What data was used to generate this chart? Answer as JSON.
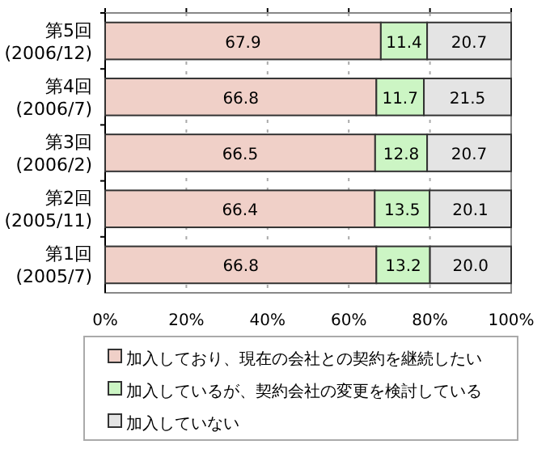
{
  "chart_data": {
    "type": "bar",
    "orientation": "horizontal",
    "stacked": true,
    "categories": [
      "第5回\n(2006/12)",
      "第4回\n(2006/7)",
      "第3回\n(2006/2)",
      "第2回\n(2005/11)",
      "第1回\n(2005/7)"
    ],
    "series": [
      {
        "name": "加入しており、現在の会社との契約を継続したい",
        "color": "#f0d0c8",
        "values": [
          67.9,
          66.8,
          66.5,
          66.4,
          66.8
        ]
      },
      {
        "name": "加入しているが、契約会社の変更を検討している",
        "color": "#ccf5c4",
        "values": [
          11.4,
          11.7,
          12.8,
          13.5,
          13.2
        ]
      },
      {
        "name": "加入していない",
        "color": "#e4e4e4",
        "values": [
          20.7,
          21.5,
          20.7,
          20.1,
          20.0
        ],
        "value_labels": [
          "20.7",
          "21.5",
          "20.7",
          "20.1",
          "20.0"
        ]
      }
    ],
    "xlim": [
      0,
      100
    ],
    "xticks": [
      {
        "value": 0,
        "label": "0%"
      },
      {
        "value": 20,
        "label": "20%"
      },
      {
        "value": 40,
        "label": "40%"
      },
      {
        "value": 60,
        "label": "60%"
      },
      {
        "value": 80,
        "label": "80%"
      },
      {
        "value": 100,
        "label": "100%"
      }
    ],
    "grid": "x",
    "legend": "bottom",
    "data_labels": true
  }
}
